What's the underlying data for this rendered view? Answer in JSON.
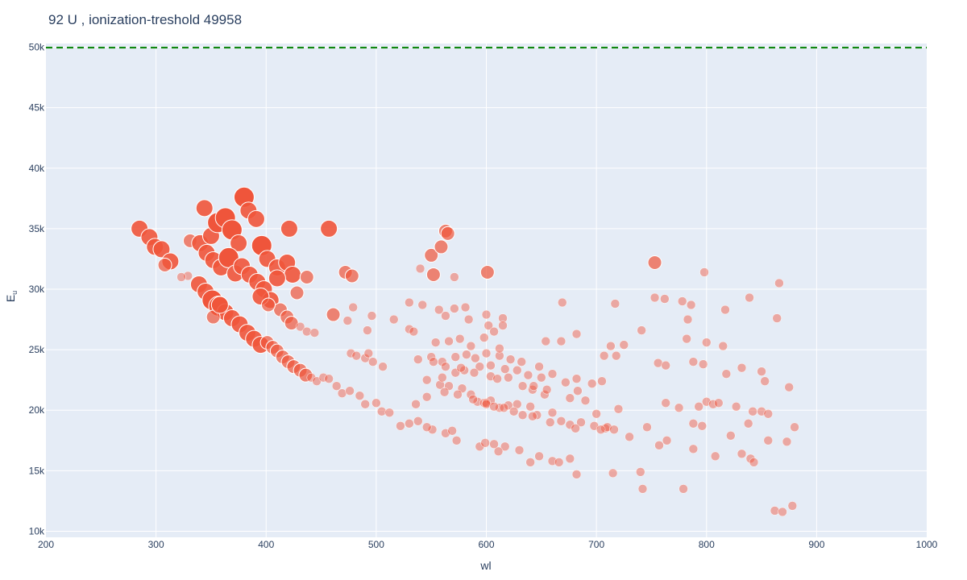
{
  "chart_data": {
    "type": "scatter",
    "title": "92 U , ionization-treshold 49958",
    "xlabel": "wl",
    "ylabel": "E",
    "ylabel_sub": "u",
    "xlim": [
      200,
      1000
    ],
    "ylim": [
      9500,
      50300
    ],
    "xticks": [
      200,
      300,
      400,
      500,
      600,
      700,
      800,
      900,
      1000
    ],
    "xtick_labels": [
      "200",
      "300",
      "400",
      "500",
      "600",
      "700",
      "800",
      "900",
      "1000"
    ],
    "yticks": [
      10000,
      15000,
      20000,
      25000,
      30000,
      35000,
      40000,
      45000,
      50000
    ],
    "ytick_labels": [
      "10k",
      "15k",
      "20k",
      "25k",
      "30k",
      "35k",
      "40k",
      "45k",
      "50k"
    ],
    "threshold": 49958,
    "colors": {
      "background": "#e5ecf6",
      "grid": "#ffffff",
      "marker": "#ef553b",
      "threshold_line": "#008000",
      "text": "#2a3f5f"
    },
    "points": [
      [
        285,
        35000,
        3
      ],
      [
        294,
        34300,
        3
      ],
      [
        299,
        33500,
        3
      ],
      [
        305,
        33300,
        3
      ],
      [
        313,
        32300,
        3
      ],
      [
        308,
        32000,
        2
      ],
      [
        331,
        34000,
        2
      ],
      [
        340,
        33800,
        3
      ],
      [
        344,
        36700,
        3
      ],
      [
        350,
        34400,
        3
      ],
      [
        356,
        35500,
        4
      ],
      [
        363,
        35900,
        4
      ],
      [
        369,
        34900,
        4
      ],
      [
        375,
        33800,
        3
      ],
      [
        380,
        37600,
        4
      ],
      [
        384,
        36500,
        3
      ],
      [
        391,
        35800,
        3
      ],
      [
        396,
        33600,
        4
      ],
      [
        401,
        32500,
        3
      ],
      [
        410,
        31800,
        3
      ],
      [
        419,
        32200,
        3
      ],
      [
        421,
        35000,
        3
      ],
      [
        424,
        31200,
        3
      ],
      [
        437,
        31000,
        2
      ],
      [
        428,
        29700,
        2
      ],
      [
        457,
        35000,
        3
      ],
      [
        346,
        33000,
        3
      ],
      [
        352,
        32400,
        3
      ],
      [
        359,
        31800,
        3
      ],
      [
        366,
        32600,
        4
      ],
      [
        372,
        31300,
        3
      ],
      [
        378,
        31900,
        3
      ],
      [
        385,
        31200,
        3
      ],
      [
        392,
        30600,
        3
      ],
      [
        398,
        30000,
        3
      ],
      [
        404,
        29100,
        3
      ],
      [
        410,
        30900,
        3
      ],
      [
        339,
        30400,
        3
      ],
      [
        345,
        29800,
        3
      ],
      [
        351,
        29100,
        4
      ],
      [
        357,
        28600,
        4
      ],
      [
        363,
        28100,
        3
      ],
      [
        369,
        27600,
        3
      ],
      [
        376,
        27100,
        3
      ],
      [
        383,
        26400,
        3
      ],
      [
        389,
        25900,
        3
      ],
      [
        395,
        25400,
        3
      ],
      [
        401,
        25600,
        2
      ],
      [
        406,
        25200,
        2
      ],
      [
        413,
        28300,
        2
      ],
      [
        419,
        27700,
        2
      ],
      [
        423,
        27200,
        2
      ],
      [
        431,
        26900,
        1
      ],
      [
        437,
        26500,
        1
      ],
      [
        444,
        26400,
        1
      ],
      [
        410,
        24900,
        2
      ],
      [
        415,
        24400,
        2
      ],
      [
        420,
        24000,
        2
      ],
      [
        425,
        23600,
        2
      ],
      [
        431,
        23300,
        2
      ],
      [
        436,
        22900,
        2
      ],
      [
        441,
        22700,
        1
      ],
      [
        446,
        22400,
        1
      ],
      [
        452,
        22700,
        1
      ],
      [
        457,
        22600,
        1
      ],
      [
        329,
        31100,
        1
      ],
      [
        323,
        31000,
        1
      ],
      [
        352,
        27700,
        2
      ],
      [
        358,
        28700,
        3
      ],
      [
        395,
        29400,
        3
      ],
      [
        402,
        28700,
        2
      ],
      [
        461,
        27900,
        2
      ],
      [
        472,
        31400,
        2
      ],
      [
        478,
        31100,
        2
      ],
      [
        479,
        28500,
        1
      ],
      [
        474,
        27400,
        1
      ],
      [
        492,
        26600,
        1
      ],
      [
        496,
        27800,
        1
      ],
      [
        477,
        24700,
        1
      ],
      [
        482,
        24500,
        1
      ],
      [
        490,
        24300,
        1
      ],
      [
        493,
        24700,
        1
      ],
      [
        497,
        24000,
        1
      ],
      [
        506,
        23600,
        1
      ],
      [
        464,
        22000,
        1
      ],
      [
        469,
        21400,
        1
      ],
      [
        476,
        21600,
        1
      ],
      [
        485,
        21200,
        1
      ],
      [
        490,
        20500,
        1
      ],
      [
        500,
        20600,
        1
      ],
      [
        505,
        19900,
        1
      ],
      [
        512,
        19800,
        1
      ],
      [
        516,
        27500,
        1
      ],
      [
        530,
        26700,
        1
      ],
      [
        534,
        26500,
        1
      ],
      [
        530,
        28900,
        1
      ],
      [
        540,
        31700,
        1
      ],
      [
        542,
        28700,
        1
      ],
      [
        550,
        32800,
        2
      ],
      [
        552,
        31200,
        2
      ],
      [
        559,
        33500,
        2
      ],
      [
        563,
        34800,
        2
      ],
      [
        565,
        34600,
        2
      ],
      [
        571,
        31000,
        1
      ],
      [
        557,
        28300,
        1
      ],
      [
        563,
        27800,
        1
      ],
      [
        571,
        28400,
        1
      ],
      [
        581,
        28500,
        1
      ],
      [
        584,
        27500,
        1
      ],
      [
        601,
        31400,
        2
      ],
      [
        600,
        27900,
        1
      ],
      [
        602,
        27000,
        1
      ],
      [
        607,
        26500,
        1
      ],
      [
        615,
        27600,
        1
      ],
      [
        615,
        27000,
        1
      ],
      [
        669,
        28900,
        1
      ],
      [
        654,
        25700,
        1
      ],
      [
        668,
        25700,
        1
      ],
      [
        682,
        26300,
        1
      ],
      [
        741,
        26600,
        1
      ],
      [
        717,
        28800,
        1
      ],
      [
        753,
        32200,
        2
      ],
      [
        753,
        29300,
        1
      ],
      [
        762,
        29200,
        1
      ],
      [
        778,
        29000,
        1
      ],
      [
        786,
        28700,
        1
      ],
      [
        798,
        31400,
        1
      ],
      [
        817,
        28300,
        1
      ],
      [
        839,
        29300,
        1
      ],
      [
        866,
        30500,
        1
      ],
      [
        864,
        27600,
        1
      ],
      [
        783,
        27500,
        1
      ],
      [
        782,
        25900,
        1
      ],
      [
        800,
        25600,
        1
      ],
      [
        815,
        25300,
        1
      ],
      [
        713,
        25300,
        1
      ],
      [
        718,
        24500,
        1
      ],
      [
        707,
        24500,
        1
      ],
      [
        725,
        25400,
        1
      ],
      [
        756,
        23900,
        1
      ],
      [
        763,
        23700,
        1
      ],
      [
        788,
        24000,
        1
      ],
      [
        797,
        23800,
        1
      ],
      [
        818,
        23000,
        1
      ],
      [
        832,
        23500,
        1
      ],
      [
        850,
        23200,
        1
      ],
      [
        853,
        22400,
        1
      ],
      [
        875,
        21900,
        1
      ],
      [
        763,
        20600,
        1
      ],
      [
        775,
        20200,
        1
      ],
      [
        793,
        20300,
        1
      ],
      [
        800,
        20700,
        1
      ],
      [
        806,
        20500,
        1
      ],
      [
        811,
        20600,
        1
      ],
      [
        827,
        20300,
        1
      ],
      [
        842,
        19900,
        1
      ],
      [
        850,
        19900,
        1
      ],
      [
        856,
        19700,
        1
      ],
      [
        880,
        18600,
        1
      ],
      [
        757,
        17100,
        1
      ],
      [
        764,
        17500,
        1
      ],
      [
        788,
        16800,
        1
      ],
      [
        808,
        16200,
        1
      ],
      [
        832,
        16400,
        1
      ],
      [
        840,
        16000,
        1
      ],
      [
        843,
        15700,
        1
      ],
      [
        856,
        17500,
        1
      ],
      [
        873,
        17400,
        1
      ],
      [
        742,
        13500,
        1
      ],
      [
        779,
        13500,
        1
      ],
      [
        862,
        11700,
        1
      ],
      [
        869,
        11600,
        1
      ],
      [
        878,
        12100,
        1
      ],
      [
        746,
        18600,
        1
      ],
      [
        788,
        18900,
        1
      ],
      [
        796,
        18700,
        1
      ],
      [
        838,
        18900,
        1
      ],
      [
        822,
        17900,
        1
      ],
      [
        720,
        20100,
        1
      ],
      [
        708,
        18500,
        1
      ],
      [
        710,
        18600,
        1
      ],
      [
        716,
        18400,
        1
      ],
      [
        730,
        17800,
        1
      ],
      [
        715,
        14800,
        1
      ],
      [
        740,
        14900,
        1
      ],
      [
        676,
        16000,
        1
      ],
      [
        682,
        14700,
        1
      ],
      [
        660,
        15800,
        1
      ],
      [
        666,
        15700,
        1
      ],
      [
        640,
        15700,
        1
      ],
      [
        648,
        16200,
        1
      ],
      [
        630,
        16700,
        1
      ],
      [
        617,
        17000,
        1
      ],
      [
        611,
        16600,
        1
      ],
      [
        607,
        17200,
        1
      ],
      [
        594,
        17000,
        1
      ],
      [
        599,
        17300,
        1
      ],
      [
        573,
        17500,
        1
      ],
      [
        563,
        18100,
        1
      ],
      [
        569,
        18300,
        1
      ],
      [
        551,
        18400,
        1
      ],
      [
        546,
        18600,
        1
      ],
      [
        538,
        19100,
        1
      ],
      [
        530,
        18900,
        1
      ],
      [
        522,
        18700,
        1
      ],
      [
        536,
        20500,
        1
      ],
      [
        546,
        21100,
        1
      ],
      [
        558,
        22100,
        1
      ],
      [
        566,
        22000,
        1
      ],
      [
        578,
        21800,
        1
      ],
      [
        586,
        21300,
        1
      ],
      [
        592,
        20700,
        1
      ],
      [
        598,
        20600,
        1
      ],
      [
        604,
        20800,
        1
      ],
      [
        612,
        20200,
        1
      ],
      [
        620,
        20400,
        1
      ],
      [
        628,
        20500,
        1
      ],
      [
        640,
        20300,
        1
      ],
      [
        646,
        19600,
        1
      ],
      [
        660,
        19800,
        1
      ],
      [
        668,
        19100,
        1
      ],
      [
        686,
        19000,
        1
      ],
      [
        700,
        19700,
        1
      ],
      [
        546,
        22500,
        1
      ],
      [
        560,
        22700,
        1
      ],
      [
        572,
        23100,
        1
      ],
      [
        580,
        23300,
        1
      ],
      [
        594,
        23600,
        1
      ],
      [
        604,
        22800,
        1
      ],
      [
        610,
        22600,
        1
      ],
      [
        620,
        22700,
        1
      ],
      [
        628,
        23300,
        1
      ],
      [
        638,
        22900,
        1
      ],
      [
        650,
        22700,
        1
      ],
      [
        660,
        23000,
        1
      ],
      [
        672,
        22300,
        1
      ],
      [
        682,
        22600,
        1
      ],
      [
        696,
        22200,
        1
      ],
      [
        705,
        22400,
        1
      ],
      [
        538,
        24200,
        1
      ],
      [
        550,
        24400,
        1
      ],
      [
        560,
        24000,
        1
      ],
      [
        572,
        24400,
        1
      ],
      [
        582,
        24600,
        1
      ],
      [
        590,
        24300,
        1
      ],
      [
        600,
        24700,
        1
      ],
      [
        612,
        24500,
        1
      ],
      [
        622,
        24200,
        1
      ],
      [
        632,
        24000,
        1
      ],
      [
        648,
        23600,
        1
      ],
      [
        554,
        25600,
        1
      ],
      [
        566,
        25700,
        1
      ],
      [
        576,
        25900,
        1
      ],
      [
        586,
        25300,
        1
      ],
      [
        598,
        26000,
        1
      ],
      [
        612,
        25100,
        1
      ],
      [
        552,
        24000,
        1
      ],
      [
        563,
        23600,
        1
      ],
      [
        577,
        23500,
        1
      ],
      [
        589,
        23100,
        1
      ],
      [
        604,
        23700,
        1
      ],
      [
        617,
        23400,
        1
      ],
      [
        633,
        22000,
        1
      ],
      [
        642,
        21700,
        1
      ],
      [
        653,
        21300,
        1
      ],
      [
        676,
        21000,
        1
      ],
      [
        690,
        20800,
        1
      ],
      [
        643,
        22000,
        1
      ],
      [
        655,
        21700,
        1
      ],
      [
        683,
        21600,
        1
      ],
      [
        562,
        21500,
        1
      ],
      [
        574,
        21300,
        1
      ],
      [
        588,
        20900,
        1
      ],
      [
        600,
        20600,
        1
      ],
      [
        600,
        20500,
        1
      ],
      [
        607,
        20300,
        1
      ],
      [
        616,
        20200,
        1
      ],
      [
        625,
        19900,
        1
      ],
      [
        633,
        19600,
        1
      ],
      [
        642,
        19500,
        1
      ],
      [
        658,
        19000,
        1
      ],
      [
        676,
        18800,
        1
      ],
      [
        681,
        18500,
        1
      ],
      [
        698,
        18700,
        1
      ],
      [
        704,
        18400,
        1
      ]
    ]
  }
}
